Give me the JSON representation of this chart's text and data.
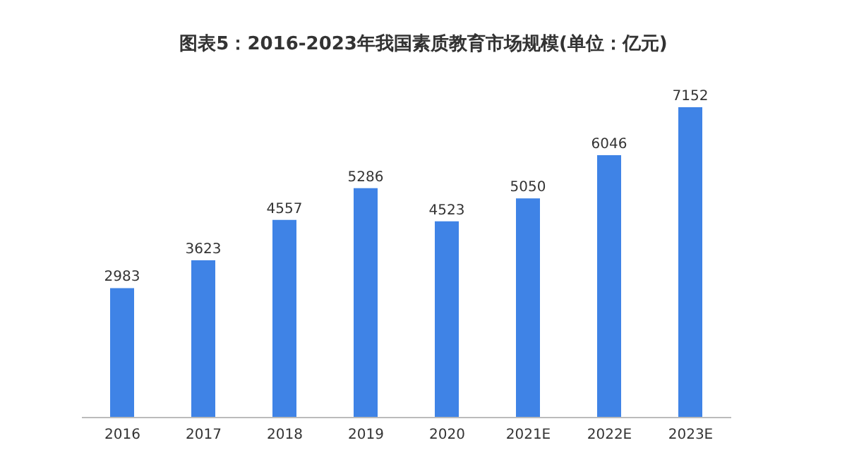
{
  "chart_data": {
    "type": "bar",
    "title": "图表5：2016-2023年我国素质教育市场规模(单位：亿元)",
    "categories": [
      "2016",
      "2017",
      "2018",
      "2019",
      "2020",
      "2021E",
      "2022E",
      "2023E"
    ],
    "values": [
      2983,
      3623,
      4557,
      5286,
      4523,
      5050,
      6046,
      7152
    ],
    "color": "#3f83e6",
    "data_labels": true
  }
}
